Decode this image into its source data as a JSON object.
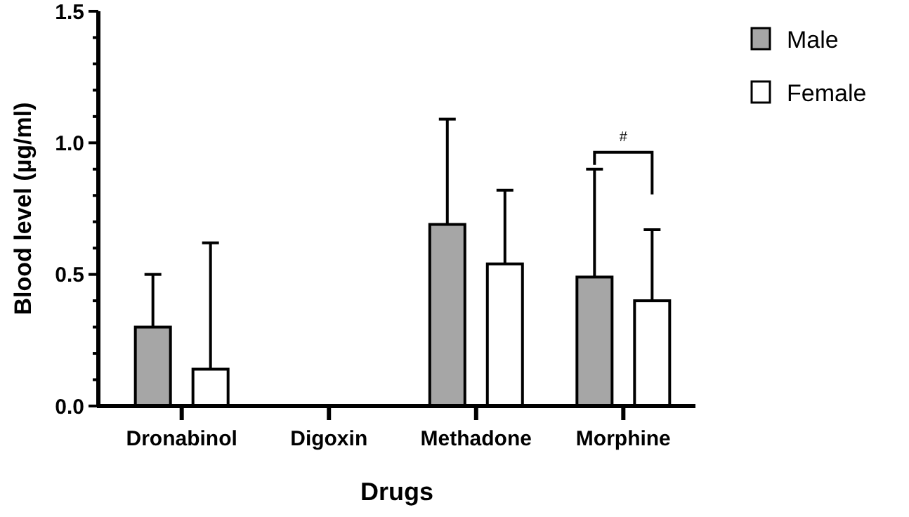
{
  "chart_data": {
    "type": "bar",
    "xlabel": "Drugs",
    "ylabel": "Blood level (µg/ml)",
    "categories": [
      "Dronabinol",
      "Digoxin",
      "Methadone",
      "Morphine"
    ],
    "series": [
      {
        "name": "Male",
        "color": "#a6a6a6",
        "values": [
          0.3,
          null,
          0.69,
          0.49
        ],
        "errors": [
          [
            0.3,
            0.5
          ],
          null,
          [
            0.69,
            1.09
          ],
          [
            0.49,
            0.9
          ]
        ]
      },
      {
        "name": "Female",
        "color": "#ffffff",
        "values": [
          0.14,
          null,
          0.54,
          0.4
        ],
        "errors": [
          [
            0.14,
            0.62
          ],
          null,
          [
            0.54,
            0.82
          ],
          [
            0.4,
            0.67
          ]
        ]
      }
    ],
    "ylim": [
      0,
      1.5
    ],
    "yticks": [
      {
        "value": 0,
        "label": "0.0"
      },
      {
        "value": 0.1,
        "label": null
      },
      {
        "value": 0.2,
        "label": null
      },
      {
        "value": 0.3,
        "label": null
      },
      {
        "value": 0.4,
        "label": null
      },
      {
        "value": 0.5,
        "label": "0.5"
      },
      {
        "value": 0.6,
        "label": null
      },
      {
        "value": 0.7,
        "label": null
      },
      {
        "value": 0.8,
        "label": null
      },
      {
        "value": 0.9,
        "label": null
      },
      {
        "value": 1,
        "label": "1.0"
      },
      {
        "value": 1.1,
        "label": null
      },
      {
        "value": 1.2,
        "label": null
      },
      {
        "value": 1.3,
        "label": null
      },
      {
        "value": 1.4,
        "label": null
      },
      {
        "value": 1.5,
        "label": "1.5"
      }
    ],
    "legend": "top right",
    "grid": false,
    "annotations": [
      "#"
    ]
  }
}
